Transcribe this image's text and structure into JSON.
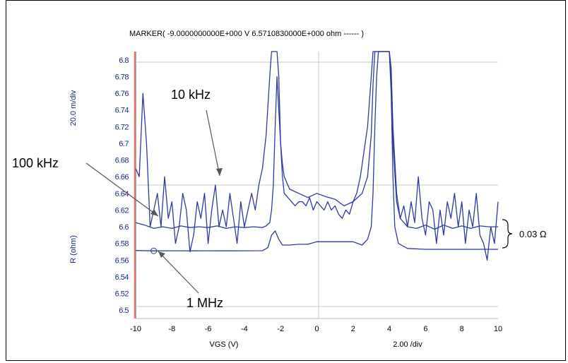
{
  "chart_data": {
    "type": "line",
    "title": "MARKER(  -9.0000000000E+000 V   6.5710830000E+000 ohm  ------ )",
    "xlabel": "VGS (V)",
    "ylabel": "R (ohm)",
    "y_div_label": "20.0 m/div",
    "x_div_label": "2.00 /div",
    "xlim": [
      -10,
      10
    ],
    "ylim": [
      6.49,
      6.81
    ],
    "x_ticks": [
      "-10",
      "-8",
      "-6",
      "-4",
      "-2",
      "0",
      "2",
      "4",
      "6",
      "8",
      "10"
    ],
    "y_ticks": [
      "6.5",
      "6.52",
      "6.54",
      "6.56",
      "6.58",
      "6.6",
      "6.62",
      "6.64",
      "6.66",
      "6.68",
      "6.7",
      "6.72",
      "6.74",
      "6.76",
      "6.78",
      "6.8"
    ],
    "grid": "center-lines",
    "line_color": "#2b3aa0",
    "marker_line_color": "#e8726f",
    "marker": {
      "x": -9.0,
      "y": 6.571083
    },
    "series": [
      {
        "x": [
          -10,
          -9.8,
          -9.6,
          -9.4,
          -9.2,
          -9.0,
          -8.8,
          -8.6,
          -8.4,
          -8.2,
          -8.0,
          -7.8,
          -7.6,
          -7.4,
          -7.2,
          -7.0,
          -6.8,
          -6.6,
          -6.4,
          -6.2,
          -6.0,
          -5.8,
          -5.6,
          -5.4,
          -5.2,
          -5.0,
          -4.8,
          -4.6,
          -4.4,
          -4.2,
          -4.0,
          -3.8,
          -3.6,
          -3.4,
          -3.2,
          -3.0,
          -2.8,
          -2.6,
          -2.5,
          -2.4,
          -2.3,
          -2.2,
          -2.1,
          -2.0,
          -1.9,
          -1.8,
          -1.6,
          -1.4,
          -1.2,
          -1.0,
          -0.8,
          -0.6,
          -0.4,
          -0.2,
          0.0,
          0.2,
          0.4,
          0.6,
          0.8,
          1.0,
          1.2,
          1.4,
          1.6,
          1.8,
          2.0,
          2.2,
          2.4,
          2.6,
          2.8,
          3.0,
          3.1,
          3.2,
          3.3,
          3.4,
          3.5,
          3.6,
          3.7,
          3.8,
          3.9,
          4.0,
          4.1,
          4.2,
          4.4,
          4.6,
          4.8,
          5.0,
          5.2,
          5.4,
          5.6,
          5.8,
          6.0,
          6.2,
          6.4,
          6.6,
          6.8,
          7.0,
          7.2,
          7.4,
          7.6,
          7.8,
          8.0,
          8.2,
          8.4,
          8.6,
          8.8,
          9.0,
          9.2,
          9.4,
          9.6,
          9.8,
          10.0
        ],
        "y": [
          6.67,
          6.66,
          6.76,
          6.7,
          6.6,
          6.62,
          6.64,
          6.6,
          6.66,
          6.61,
          6.63,
          6.58,
          6.6,
          6.64,
          6.62,
          6.57,
          6.59,
          6.63,
          6.61,
          6.64,
          6.58,
          6.62,
          6.65,
          6.6,
          6.62,
          6.6,
          6.64,
          6.61,
          6.58,
          6.63,
          6.6,
          6.62,
          6.64,
          6.62,
          6.65,
          6.67,
          6.71,
          6.78,
          6.81,
          6.81,
          6.81,
          6.81,
          6.78,
          6.7,
          6.66,
          6.64,
          6.635,
          6.63,
          6.625,
          6.63,
          6.63,
          6.625,
          6.635,
          6.62,
          6.63,
          6.625,
          6.62,
          6.63,
          6.62,
          6.625,
          6.615,
          6.61,
          6.62,
          6.615,
          6.63,
          6.64,
          6.66,
          6.69,
          6.72,
          6.78,
          6.81,
          6.81,
          6.81,
          6.81,
          6.81,
          6.81,
          6.81,
          6.81,
          6.81,
          6.81,
          6.79,
          6.72,
          6.64,
          6.61,
          6.625,
          6.6,
          6.63,
          6.605,
          6.66,
          6.61,
          6.59,
          6.63,
          6.62,
          6.58,
          6.62,
          6.59,
          6.63,
          6.61,
          6.64,
          6.6,
          6.63,
          6.58,
          6.62,
          6.6,
          6.64,
          6.59,
          6.58,
          6.56,
          6.6,
          6.58,
          6.63
        ]
      },
      {
        "x": [
          -10,
          -9.5,
          -9.0,
          -8.5,
          -8.0,
          -7.5,
          -7.0,
          -6.5,
          -6.0,
          -5.5,
          -5.0,
          -4.5,
          -4.0,
          -3.5,
          -3.0,
          -2.8,
          -2.6,
          -2.5,
          -2.4,
          -2.3,
          -2.2,
          -2.1,
          -2.0,
          -1.9,
          -1.8,
          -1.5,
          -1.0,
          -0.5,
          0.0,
          0.5,
          1.0,
          1.5,
          2.0,
          2.5,
          2.8,
          3.0,
          3.1,
          3.2,
          3.3,
          3.4,
          3.5,
          3.6,
          3.7,
          3.8,
          3.9,
          4.0,
          4.1,
          4.2,
          4.4,
          4.6,
          5.0,
          5.5,
          6.0,
          6.5,
          7.0,
          7.5,
          8.0,
          8.5,
          9.0,
          9.5,
          10.0
        ],
        "y": [
          6.605,
          6.602,
          6.598,
          6.6,
          6.598,
          6.601,
          6.599,
          6.6,
          6.599,
          6.601,
          6.598,
          6.6,
          6.599,
          6.6,
          6.599,
          6.601,
          6.605,
          6.62,
          6.65,
          6.72,
          6.78,
          6.74,
          6.7,
          6.675,
          6.66,
          6.645,
          6.64,
          6.635,
          6.64,
          6.636,
          6.633,
          6.625,
          6.63,
          6.64,
          6.66,
          6.71,
          6.77,
          6.81,
          6.81,
          6.81,
          6.81,
          6.81,
          6.81,
          6.81,
          6.81,
          6.81,
          6.77,
          6.7,
          6.63,
          6.61,
          6.6,
          6.598,
          6.602,
          6.597,
          6.602,
          6.598,
          6.601,
          6.598,
          6.601,
          6.6,
          6.6
        ]
      },
      {
        "x": [
          -10,
          -9,
          -8,
          -7,
          -6,
          -5,
          -4,
          -3,
          -2.7,
          -2.5,
          -2.3,
          -2.1,
          -1.9,
          -1.5,
          -1.0,
          -0.5,
          0.0,
          0.5,
          1.0,
          1.5,
          2.0,
          2.5,
          2.8,
          3.0,
          3.1,
          3.2,
          3.3,
          3.4,
          3.5,
          3.6,
          3.7,
          3.8,
          3.9,
          4.0,
          4.1,
          4.2,
          4.3,
          4.5,
          5.0,
          6.0,
          7.0,
          8.0,
          9.0,
          10.0
        ],
        "y": [
          6.5715,
          6.5711,
          6.5712,
          6.5711,
          6.5712,
          6.5711,
          6.5712,
          6.5713,
          6.575,
          6.59,
          6.595,
          6.585,
          6.578,
          6.578,
          6.579,
          6.579,
          6.582,
          6.582,
          6.582,
          6.582,
          6.582,
          6.578,
          6.585,
          6.6,
          6.64,
          6.72,
          6.78,
          6.81,
          6.81,
          6.81,
          6.81,
          6.81,
          6.81,
          6.81,
          6.76,
          6.66,
          6.6,
          6.58,
          6.574,
          6.573,
          6.573,
          6.573,
          6.573,
          6.573
        ]
      }
    ],
    "annotations": [
      {
        "text": "10 kHz"
      },
      {
        "text": "100 kHz"
      },
      {
        "text": "1 MHz"
      },
      {
        "text": "0.03 Ω"
      }
    ]
  }
}
